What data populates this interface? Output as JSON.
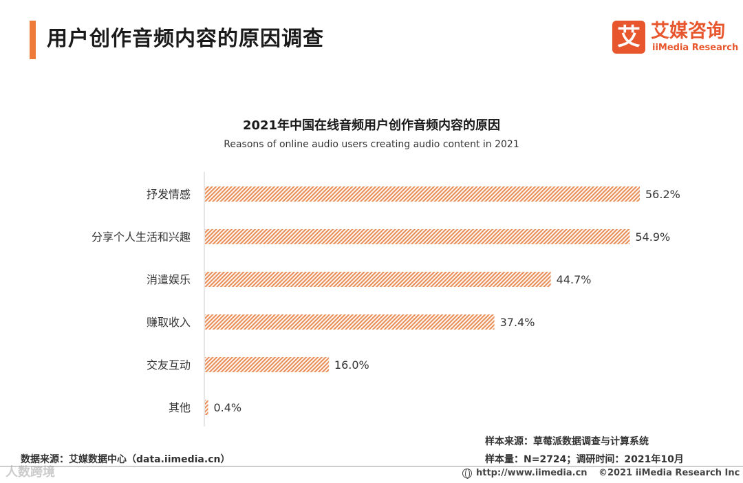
{
  "header": {
    "title": "用户创作音频内容的原因调查",
    "logo_mark": "艾",
    "logo_cn": "艾媒咨询",
    "logo_en": "iiMedia Research"
  },
  "chart_data": {
    "type": "bar",
    "orientation": "horizontal",
    "title": "2021年中国在线音频用户创作音频内容的原因",
    "subtitle": "Reasons of online audio users creating audio content in 2021",
    "categories": [
      "抒发情感",
      "分享个人生活和兴趣",
      "消遣娱乐",
      "赚取收入",
      "交友互动",
      "其他"
    ],
    "values": [
      56.2,
      54.9,
      44.7,
      37.4,
      16.0,
      0.4
    ],
    "value_labels": [
      "56.2%",
      "54.9%",
      "44.7%",
      "37.4%",
      "16.0%",
      "0.4%"
    ],
    "unit": "%",
    "xlim": [
      0,
      60
    ],
    "bar_color": "#e9905a"
  },
  "footer": {
    "data_source": "数据来源：艾媒数据中心（data.iimedia.cn）",
    "sample_source": "样本来源：草莓派数据调查与计算系统",
    "sample_size": "样本量：N=2724；调研时间：2021年10月",
    "url": "http://www.iimedia.cn",
    "copyright": "©2021  iiMedia Research  Inc"
  },
  "watermark": "人数跨境"
}
